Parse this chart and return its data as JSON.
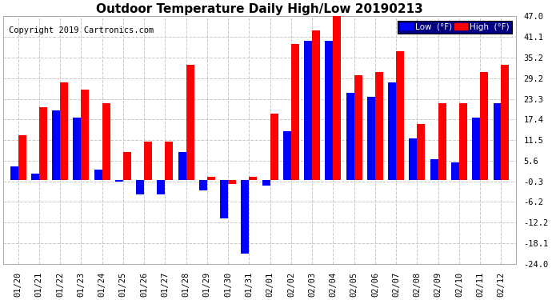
{
  "title": "Outdoor Temperature Daily High/Low 20190213",
  "copyright": "Copyright 2019 Cartronics.com",
  "dates": [
    "01/20",
    "01/21",
    "01/22",
    "01/23",
    "01/24",
    "01/25",
    "01/26",
    "01/27",
    "01/28",
    "01/29",
    "01/30",
    "01/31",
    "02/01",
    "02/02",
    "02/03",
    "02/04",
    "02/05",
    "02/06",
    "02/07",
    "02/08",
    "02/09",
    "02/10",
    "02/11",
    "02/12"
  ],
  "high": [
    13.0,
    21.0,
    28.0,
    26.0,
    22.0,
    8.0,
    11.0,
    11.0,
    33.0,
    1.0,
    -1.0,
    1.0,
    19.0,
    39.0,
    43.0,
    48.0,
    30.0,
    31.0,
    37.0,
    16.0,
    22.0,
    22.0,
    31.0,
    33.0
  ],
  "low": [
    4.0,
    2.0,
    20.0,
    18.0,
    3.0,
    -0.5,
    -4.0,
    -4.0,
    8.0,
    -3.0,
    -11.0,
    -21.0,
    -1.5,
    14.0,
    40.0,
    40.0,
    25.0,
    24.0,
    28.0,
    12.0,
    6.0,
    5.0,
    18.0,
    22.0
  ],
  "yticks": [
    47.0,
    41.1,
    35.2,
    29.2,
    23.3,
    17.4,
    11.5,
    5.6,
    -0.3,
    -6.2,
    -12.2,
    -18.1,
    -24.0
  ],
  "ymin": -24.0,
  "ymax": 47.0,
  "bar_width": 0.38,
  "high_color": "#ff0000",
  "low_color": "#0000ff",
  "bg_color": "#ffffff",
  "grid_color": "#c8c8c8",
  "title_fontsize": 11,
  "copyright_fontsize": 7.5,
  "legend_low_label": "Low  (°F)",
  "legend_high_label": "High  (°F)"
}
